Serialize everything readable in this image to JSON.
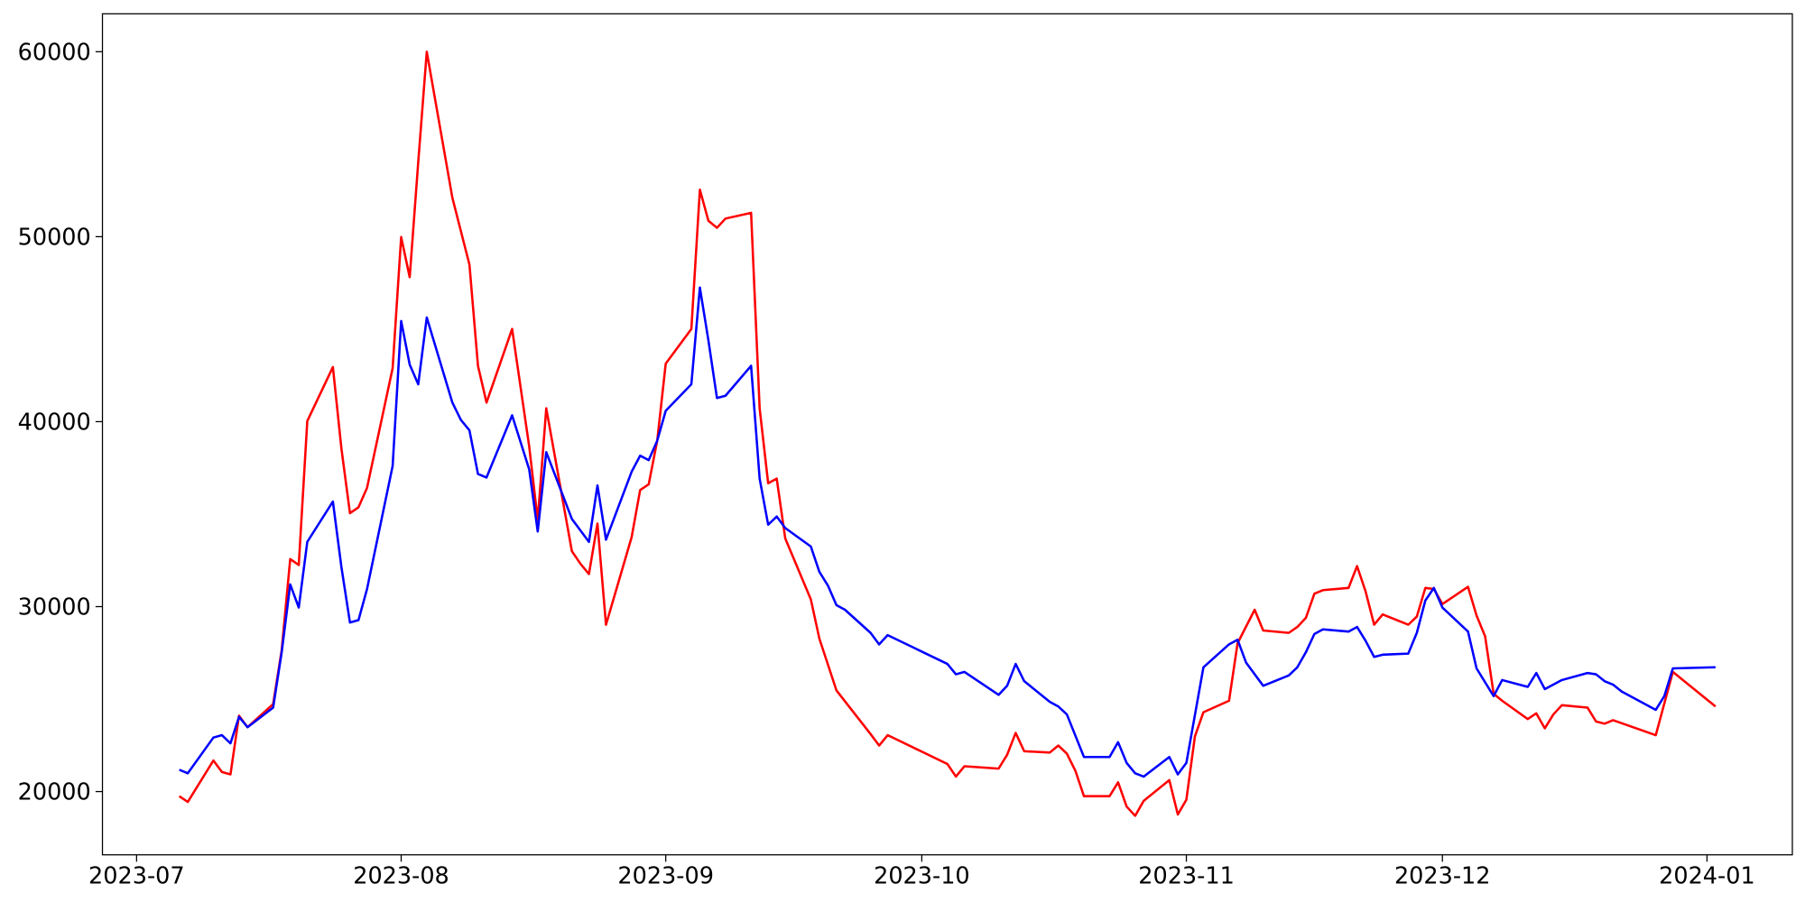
{
  "chart_data": {
    "type": "line",
    "xlim": [
      "2023-06-27",
      "2024-01-11"
    ],
    "xticks": [
      {
        "value": "2023-07-01",
        "label": "2023-07"
      },
      {
        "value": "2023-08-01",
        "label": "2023-08"
      },
      {
        "value": "2023-09-01",
        "label": "2023-09"
      },
      {
        "value": "2023-10-01",
        "label": "2023-10"
      },
      {
        "value": "2023-11-01",
        "label": "2023-11"
      },
      {
        "value": "2023-12-01",
        "label": "2023-12"
      },
      {
        "value": "2024-01-01",
        "label": "2024-01"
      }
    ],
    "ylim": [
      16580,
      62050
    ],
    "yticks": [
      20000,
      30000,
      40000,
      50000,
      60000
    ],
    "grid": false,
    "series": [
      {
        "color": "#ff0000",
        "x": [
          "2023-07-06",
          "2023-07-07",
          "2023-07-10",
          "2023-07-11",
          "2023-07-12",
          "2023-07-13",
          "2023-07-14",
          "2023-07-17",
          "2023-07-18",
          "2023-07-19",
          "2023-07-20",
          "2023-07-21",
          "2023-07-24",
          "2023-07-25",
          "2023-07-26",
          "2023-07-27",
          "2023-07-28",
          "2023-07-31",
          "2023-08-01",
          "2023-08-02",
          "2023-08-03",
          "2023-08-04",
          "2023-08-07",
          "2023-08-09",
          "2023-08-10",
          "2023-08-11",
          "2023-08-14",
          "2023-08-16",
          "2023-08-17",
          "2023-08-18",
          "2023-08-21",
          "2023-08-22",
          "2023-08-23",
          "2023-08-24",
          "2023-08-25",
          "2023-08-28",
          "2023-08-29",
          "2023-08-30",
          "2023-08-31",
          "2023-09-01",
          "2023-09-04",
          "2023-09-05",
          "2023-09-06",
          "2023-09-07",
          "2023-09-08",
          "2023-09-11",
          "2023-09-12",
          "2023-09-13",
          "2023-09-14",
          "2023-09-15",
          "2023-09-18",
          "2023-09-19",
          "2023-09-21",
          "2023-09-25",
          "2023-09-26",
          "2023-09-27",
          "2023-10-04",
          "2023-10-05",
          "2023-10-06",
          "2023-10-10",
          "2023-10-11",
          "2023-10-12",
          "2023-10-13",
          "2023-10-16",
          "2023-10-17",
          "2023-10-18",
          "2023-10-19",
          "2023-10-20",
          "2023-10-23",
          "2023-10-24",
          "2023-10-25",
          "2023-10-26",
          "2023-10-27",
          "2023-10-30",
          "2023-10-31",
          "2023-11-01",
          "2023-11-02",
          "2023-11-03",
          "2023-11-06",
          "2023-11-07",
          "2023-11-09",
          "2023-11-10",
          "2023-11-13",
          "2023-11-14",
          "2023-11-15",
          "2023-11-16",
          "2023-11-17",
          "2023-11-20",
          "2023-11-21",
          "2023-11-22",
          "2023-11-23",
          "2023-11-24",
          "2023-11-27",
          "2023-11-28",
          "2023-11-29",
          "2023-11-30",
          "2023-12-01",
          "2023-12-04",
          "2023-12-05",
          "2023-12-06",
          "2023-12-07",
          "2023-12-08",
          "2023-12-11",
          "2023-12-12",
          "2023-12-13",
          "2023-12-14",
          "2023-12-15",
          "2023-12-18",
          "2023-12-19",
          "2023-12-20",
          "2023-12-21",
          "2023-12-26",
          "2023-12-28",
          "2024-01-02"
        ],
        "values": [
          19750,
          19440,
          21680,
          21060,
          20930,
          24100,
          23480,
          24730,
          27650,
          32570,
          32250,
          40030,
          42950,
          38540,
          35050,
          35370,
          36420,
          42890,
          49980,
          47810,
          54030,
          60000,
          52100,
          48490,
          43020,
          41030,
          45010,
          38660,
          34680,
          40720,
          33000,
          32320,
          31760,
          34490,
          29020,
          33750,
          36300,
          36610,
          38970,
          43140,
          45010,
          52540,
          50860,
          50480,
          50980,
          51290,
          40720,
          36670,
          36920,
          33690,
          30390,
          28270,
          25470,
          23110,
          22490,
          23050,
          21490,
          20810,
          21370,
          21240,
          21990,
          23170,
          22180,
          22110,
          22490,
          22050,
          21120,
          19750,
          19750,
          20500,
          19190,
          18690,
          19500,
          20620,
          18760,
          19560,
          22980,
          24290,
          24910,
          28020,
          29830,
          28710,
          28580,
          28900,
          29390,
          30700,
          30890,
          31010,
          32190,
          30820,
          29020,
          29580,
          29020,
          29460,
          31010,
          30950,
          30140,
          31070,
          29520,
          28400,
          25290,
          24910,
          23920,
          24230,
          23420,
          24170,
          24670,
          24540,
          23790,
          23670,
          23860,
          23050,
          26470,
          24600
        ]
      },
      {
        "color": "#0000ff",
        "x": [
          "2023-07-06",
          "2023-07-07",
          "2023-07-10",
          "2023-07-11",
          "2023-07-12",
          "2023-07-13",
          "2023-07-14",
          "2023-07-17",
          "2023-07-18",
          "2023-07-19",
          "2023-07-20",
          "2023-07-21",
          "2023-07-24",
          "2023-07-25",
          "2023-07-26",
          "2023-07-27",
          "2023-07-28",
          "2023-07-31",
          "2023-08-01",
          "2023-08-02",
          "2023-08-03",
          "2023-08-04",
          "2023-08-07",
          "2023-08-08",
          "2023-08-09",
          "2023-08-10",
          "2023-08-11",
          "2023-08-14",
          "2023-08-16",
          "2023-08-17",
          "2023-08-18",
          "2023-08-21",
          "2023-08-23",
          "2023-08-24",
          "2023-08-25",
          "2023-08-28",
          "2023-08-29",
          "2023-08-30",
          "2023-08-31",
          "2023-09-01",
          "2023-09-04",
          "2023-09-05",
          "2023-09-06",
          "2023-09-07",
          "2023-09-08",
          "2023-09-11",
          "2023-09-12",
          "2023-09-13",
          "2023-09-14",
          "2023-09-15",
          "2023-09-18",
          "2023-09-19",
          "2023-09-20",
          "2023-09-21",
          "2023-09-22",
          "2023-09-25",
          "2023-09-26",
          "2023-09-27",
          "2023-10-04",
          "2023-10-05",
          "2023-10-06",
          "2023-10-10",
          "2023-10-11",
          "2023-10-12",
          "2023-10-13",
          "2023-10-16",
          "2023-10-17",
          "2023-10-18",
          "2023-10-20",
          "2023-10-23",
          "2023-10-24",
          "2023-10-25",
          "2023-10-26",
          "2023-10-27",
          "2023-10-30",
          "2023-10-31",
          "2023-11-01",
          "2023-11-03",
          "2023-11-06",
          "2023-11-07",
          "2023-11-08",
          "2023-11-10",
          "2023-11-13",
          "2023-11-14",
          "2023-11-15",
          "2023-11-16",
          "2023-11-17",
          "2023-11-20",
          "2023-11-21",
          "2023-11-22",
          "2023-11-23",
          "2023-11-24",
          "2023-11-27",
          "2023-11-28",
          "2023-11-29",
          "2023-11-30",
          "2023-12-01",
          "2023-12-04",
          "2023-12-05",
          "2023-12-07",
          "2023-12-08",
          "2023-12-11",
          "2023-12-12",
          "2023-12-13",
          "2023-12-15",
          "2023-12-18",
          "2023-12-19",
          "2023-12-20",
          "2023-12-21",
          "2023-12-22",
          "2023-12-26",
          "2023-12-27",
          "2023-12-28",
          "2024-01-02"
        ],
        "values": [
          21180,
          20990,
          22920,
          23050,
          22610,
          24040,
          23480,
          24540,
          27530,
          31200,
          29950,
          33500,
          35680,
          32130,
          29140,
          29270,
          30950,
          37600,
          45440,
          43080,
          42020,
          45630,
          41030,
          40090,
          39530,
          37170,
          36980,
          40340,
          37420,
          34060,
          38350,
          34740,
          33500,
          36550,
          33620,
          37290,
          38160,
          37920,
          38970,
          40590,
          42020,
          47250,
          44390,
          41280,
          41400,
          43020,
          36920,
          34430,
          34870,
          34250,
          33250,
          31880,
          31140,
          30080,
          29830,
          28580,
          27960,
          28460,
          26900,
          26340,
          26470,
          25230,
          25720,
          26900,
          25970,
          24850,
          24600,
          24170,
          21870,
          21870,
          22670,
          21550,
          20990,
          20810,
          21870,
          20930,
          21550,
          26720,
          27960,
          28210,
          26970,
          25720,
          26280,
          26720,
          27530,
          28520,
          28770,
          28650,
          28900,
          28150,
          27280,
          27400,
          27460,
          28580,
          30330,
          31010,
          29950,
          28650,
          26660,
          25160,
          26030,
          25660,
          26410,
          25540,
          26030,
          26410,
          26340,
          25970,
          25780,
          25410,
          24420,
          25160,
          26660,
          26720
        ]
      }
    ]
  }
}
